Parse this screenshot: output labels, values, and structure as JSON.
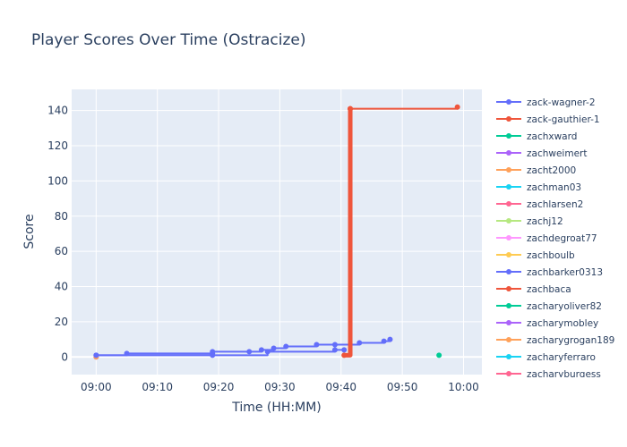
{
  "chart_data": {
    "type": "line",
    "title": "Player Scores Over Time (Ostracize)",
    "xlabel": "Time (HH:MM)",
    "ylabel": "Score",
    "x_ticks": [
      "09:00",
      "09:10",
      "09:20",
      "09:30",
      "09:40",
      "09:50",
      "10:00"
    ],
    "y_ticks": [
      0,
      20,
      40,
      60,
      80,
      100,
      120,
      140
    ],
    "xlim": [
      "08:56",
      "10:03"
    ],
    "ylim": [
      -10,
      152
    ],
    "grid": true,
    "legend_position": "right",
    "series": [
      {
        "name": "zack-wagner-2",
        "color": "#636efa",
        "mode": "lines+markers",
        "points": [
          [
            "09:00",
            1
          ],
          [
            "09:05",
            2
          ],
          [
            "09:19",
            2
          ],
          [
            "09:19",
            3
          ],
          [
            "09:25",
            3
          ],
          [
            "09:27",
            4
          ],
          [
            "09:29",
            5
          ],
          [
            "09:31",
            6
          ],
          [
            "09:36",
            7
          ],
          [
            "09:39",
            7
          ],
          [
            "09:43",
            8
          ],
          [
            "09:47",
            9
          ],
          [
            "09:48",
            10
          ]
        ]
      },
      {
        "name": "zack-gauthier-1",
        "color": "#ef553b",
        "mode": "lines+markers",
        "points": [
          [
            "09:41.5",
            141
          ],
          [
            "09:59",
            142
          ]
        ]
      },
      {
        "name": "zachxward",
        "color": "#00cc96",
        "mode": "lines+markers",
        "points": [
          [
            "09:56",
            1
          ]
        ]
      },
      {
        "name": "zachweimert",
        "color": "#ab63fa",
        "mode": "lines+markers",
        "points": [
          [
            "09:00",
            0
          ]
        ]
      },
      {
        "name": "zacht2000",
        "color": "#ffa15a",
        "mode": "lines+markers",
        "points": [
          [
            "09:00",
            0
          ]
        ]
      },
      {
        "name": "zachman03",
        "color": "#19d3f3",
        "mode": "lines+markers",
        "points": []
      },
      {
        "name": "zachlarsen2",
        "color": "#ff6692",
        "mode": "lines+markers",
        "points": []
      },
      {
        "name": "zachj12",
        "color": "#b6e880",
        "mode": "lines+markers",
        "points": []
      },
      {
        "name": "zachdegroat77",
        "color": "#ff97ff",
        "mode": "lines+markers",
        "points": []
      },
      {
        "name": "zachboulb",
        "color": "#fecb52",
        "mode": "lines+markers",
        "points": []
      },
      {
        "name": "zachbarker0313",
        "color": "#636efa",
        "mode": "lines+markers",
        "points": [
          [
            "09:00",
            1
          ],
          [
            "09:19",
            1
          ],
          [
            "09:28",
            3
          ],
          [
            "09:39",
            4
          ],
          [
            "09:40.5",
            4
          ]
        ]
      },
      {
        "name": "zachbaca",
        "color": "#ef553b",
        "mode": "lines+markers",
        "points": [
          [
            "09:40.5",
            1
          ],
          [
            "09:41.5",
            141
          ]
        ]
      },
      {
        "name": "zacharyoliver82",
        "color": "#00cc96",
        "mode": "lines+markers",
        "points": []
      },
      {
        "name": "zacharymobley",
        "color": "#ab63fa",
        "mode": "lines+markers",
        "points": []
      },
      {
        "name": "zacharygrogan189",
        "color": "#ffa15a",
        "mode": "lines+markers",
        "points": []
      },
      {
        "name": "zacharyferraro",
        "color": "#19d3f3",
        "mode": "lines+markers",
        "points": []
      },
      {
        "name": "zacharyburgess",
        "color": "#ff6692",
        "mode": "lines+markers",
        "points": []
      }
    ]
  }
}
